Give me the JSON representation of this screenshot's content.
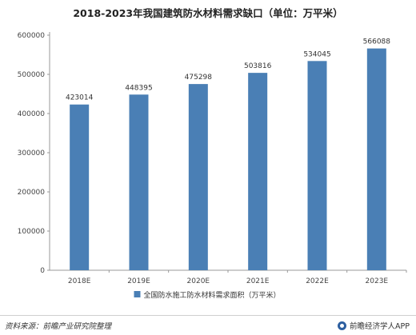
{
  "chart_data": {
    "type": "bar",
    "title": "2018-2023年我国建筑防水材料需求缺口（单位：万平米）",
    "categories": [
      "2018E",
      "2019E",
      "2020E",
      "2021E",
      "2022E",
      "2023E"
    ],
    "series": [
      {
        "name": "全国防水施工防水材料需求面积（万平米）",
        "values": [
          423014,
          448395,
          475298,
          503816,
          534045,
          566088
        ],
        "color": "#4a7fb5"
      }
    ],
    "ylim": [
      0,
      600000
    ],
    "yticks": [
      0,
      100000,
      200000,
      300000,
      400000,
      500000,
      600000
    ],
    "grid": false,
    "legend_position": "bottom-center",
    "data_labels": true
  },
  "footer": {
    "source": "资料来源：前瞻产业研究院整理",
    "brand": "前瞻经济学人APP"
  }
}
